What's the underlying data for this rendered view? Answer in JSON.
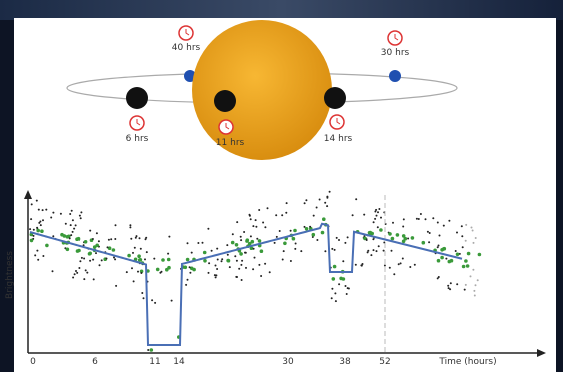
{
  "orbit_labels": [
    "40 hrs",
    "30 hrs",
    "6 hrs",
    "11 hrs",
    "14 hrs"
  ],
  "axis": {
    "y_label": "Brightness",
    "x_label": "Time (hours)",
    "ticks": [
      "0",
      "6",
      "11",
      "14",
      "30",
      "38",
      "52"
    ]
  }
}
